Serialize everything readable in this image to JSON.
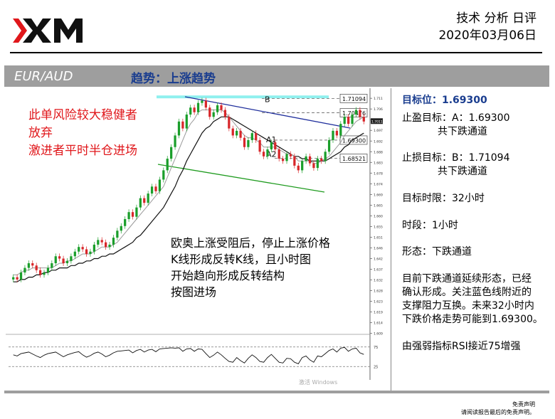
{
  "header": {
    "title": "技术 分析 日评",
    "date": "2020年03月06日"
  },
  "bar": {
    "pair": "EUR/AUD",
    "trend": "趋势：上涨趋势"
  },
  "risk_note": [
    "此单风险较大稳健者",
    "放弃",
    "激进者平时半仓进场"
  ],
  "analysis_note": [
    "欧奥上涨受阻后，停止上涨价格",
    "K线形成反转K线，且小时图",
    "开始趋向形成反转结构",
    "按图进场"
  ],
  "sidebar": {
    "target_label": "目标位：1.69300",
    "take_profit": "止盈目标：A：1.69300",
    "take_profit_sub": "共下跌通道",
    "stop_loss": "止损目标：B：1.71094",
    "stop_loss_sub": "共下跌通道",
    "time_limit": "目标时限：32小时",
    "timeframe": "时段：1小时",
    "pattern": "形态：下跌通道",
    "description": [
      "目前下跌通道延续形态，已经",
      "确认形成。关注蓝色线附近的",
      "支撑阻力互换。未来32小时内",
      "下跌价格走势可能到1.69300。"
    ],
    "rsi": "由强弱指标RSI接近75增强"
  },
  "disclaimer": [
    "免责声明",
    "请阅读报告最后的免责声明。"
  ],
  "watermark": "激活 Windows",
  "colors": {
    "accent_blue": "#1a3d8f",
    "risk_red": "#e0171b",
    "bull_candle": "#1a9e2a",
    "bear_candle": "#d8262a",
    "channel_top": "#1f2e9c",
    "channel_bottom": "#1f9b1f",
    "resistance_band": "#8ff0ee"
  },
  "chart_data": {
    "type": "candlestick",
    "timeframe": "1小时",
    "y_ticks": [
      "1.71100",
      "1.70640",
      "1.70180",
      "1.69720",
      "1.69260",
      "1.68800",
      "1.68340",
      "1.67880",
      "1.67420",
      "1.66960",
      "1.66500",
      "1.66040",
      "1.65580",
      "1.65120",
      "1.64660",
      "1.64200",
      "1.63740",
      "1.63280",
      "1.62820",
      "1.62360",
      "1.61900",
      "1.61440",
      "1.60980"
    ],
    "ylim": [
      1.61,
      1.7135
    ],
    "last_price_label": "1.70117",
    "levels": [
      {
        "label": "B",
        "value": "1.71094"
      },
      {
        "label": "",
        "value": "1.70476"
      },
      {
        "label": "A1",
        "value": "1.69300"
      },
      {
        "label": "A2",
        "value": "1.68521"
      }
    ],
    "closes": [
      1.634,
      1.633,
      1.636,
      1.638,
      1.64,
      1.639,
      1.637,
      1.635,
      1.636,
      1.638,
      1.64,
      1.643,
      1.642,
      1.64,
      1.641,
      1.643,
      1.645,
      1.647,
      1.646,
      1.644,
      1.645,
      1.648,
      1.65,
      1.649,
      1.647,
      1.648,
      1.651,
      1.654,
      1.656,
      1.659,
      1.662,
      1.66,
      1.664,
      1.668,
      1.666,
      1.67,
      1.673,
      1.671,
      1.676,
      1.68,
      1.685,
      1.69,
      1.695,
      1.701,
      1.698,
      1.704,
      1.707,
      1.705,
      1.709,
      1.71,
      1.707,
      1.703,
      1.705,
      1.708,
      1.706,
      1.703,
      1.698,
      1.695,
      1.697,
      1.694,
      1.69,
      1.693,
      1.696,
      1.693,
      1.688,
      1.686,
      1.689,
      1.692,
      1.689,
      1.685,
      1.684,
      1.687,
      1.686,
      1.682,
      1.68,
      1.684,
      1.686,
      1.683,
      1.681,
      1.685,
      1.684,
      1.688,
      1.693,
      1.697,
      1.695,
      1.7,
      1.703,
      1.7,
      1.704,
      1.706,
      1.703,
      1.701
    ],
    "ma_fast": [
      1.635,
      1.635,
      1.636,
      1.637,
      1.637,
      1.638,
      1.638,
      1.638,
      1.638,
      1.638,
      1.638,
      1.639,
      1.64,
      1.64,
      1.641,
      1.641,
      1.642,
      1.643,
      1.644,
      1.644,
      1.644,
      1.645,
      1.646,
      1.647,
      1.647,
      1.647,
      1.648,
      1.649,
      1.651,
      1.653,
      1.655,
      1.657,
      1.659,
      1.661,
      1.663,
      1.665,
      1.667,
      1.669,
      1.671,
      1.673,
      1.677,
      1.681,
      1.685,
      1.689,
      1.693,
      1.697,
      1.7,
      1.702,
      1.705,
      1.706,
      1.706,
      1.706,
      1.706,
      1.706,
      1.706,
      1.705,
      1.703,
      1.701,
      1.699,
      1.697,
      1.695,
      1.694,
      1.694,
      1.693,
      1.692,
      1.69,
      1.69,
      1.69,
      1.69,
      1.689,
      1.688,
      1.687,
      1.687,
      1.686,
      1.684,
      1.684,
      1.684,
      1.684,
      1.683,
      1.683,
      1.684,
      1.685,
      1.686,
      1.688,
      1.69,
      1.692,
      1.695,
      1.697,
      1.699,
      1.701,
      1.702,
      1.703
    ],
    "ma_slow": [
      1.632,
      1.632,
      1.633,
      1.633,
      1.634,
      1.634,
      1.635,
      1.635,
      1.636,
      1.636,
      1.637,
      1.637,
      1.638,
      1.638,
      1.638,
      1.639,
      1.639,
      1.64,
      1.64,
      1.641,
      1.641,
      1.642,
      1.642,
      1.643,
      1.643,
      1.644,
      1.644,
      1.645,
      1.646,
      1.647,
      1.648,
      1.649,
      1.651,
      1.652,
      1.654,
      1.656,
      1.658,
      1.66,
      1.662,
      1.664,
      1.667,
      1.67,
      1.673,
      1.677,
      1.68,
      1.684,
      1.687,
      1.69,
      1.693,
      1.696,
      1.698,
      1.699,
      1.701,
      1.702,
      1.703,
      1.703,
      1.703,
      1.702,
      1.701,
      1.7,
      1.699,
      1.698,
      1.697,
      1.696,
      1.695,
      1.694,
      1.693,
      1.692,
      1.691,
      1.69,
      1.689,
      1.688,
      1.687,
      1.686,
      1.686,
      1.685,
      1.685,
      1.684,
      1.684,
      1.684,
      1.684,
      1.684,
      1.685,
      1.686,
      1.687,
      1.688,
      1.69,
      1.691,
      1.693,
      1.694,
      1.695,
      1.696
    ],
    "rsi": {
      "levels": [
        "75",
        "25"
      ],
      "values": [
        55,
        52,
        58,
        60,
        62,
        57,
        52,
        48,
        54,
        58,
        60,
        62,
        56,
        50,
        55,
        58,
        61,
        63,
        55,
        49,
        53,
        59,
        62,
        57,
        50,
        54,
        60,
        64,
        65,
        66,
        67,
        60,
        66,
        69,
        62,
        67,
        69,
        63,
        70,
        71,
        72,
        73,
        72,
        73,
        64,
        70,
        71,
        64,
        70,
        69,
        58,
        48,
        54,
        62,
        55,
        46,
        38,
        36,
        48,
        40,
        34,
        46,
        55,
        48,
        38,
        36,
        48,
        56,
        46,
        36,
        34,
        46,
        45,
        36,
        32,
        48,
        52,
        42,
        36,
        52,
        50,
        58,
        66,
        70,
        62,
        72,
        74,
        64,
        70,
        72,
        60,
        56
      ]
    }
  }
}
